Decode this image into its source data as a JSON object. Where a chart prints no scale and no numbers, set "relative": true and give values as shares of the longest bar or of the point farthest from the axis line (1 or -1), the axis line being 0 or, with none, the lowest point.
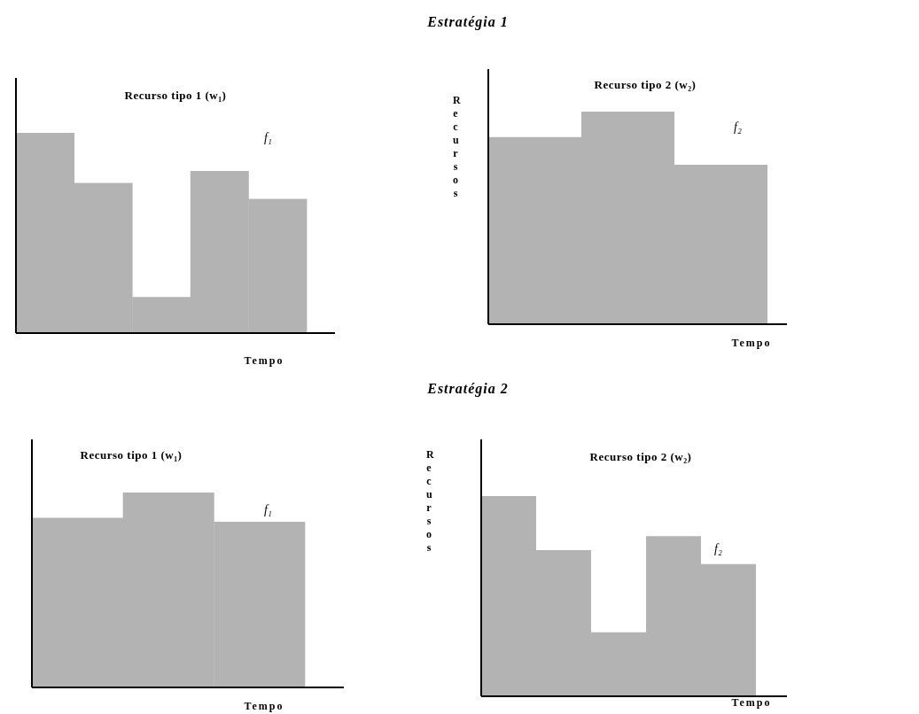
{
  "chart_data": [
    {
      "type": "bar",
      "title": "Recurso tipo 1 (w₁)",
      "xlabel": "Tempo",
      "annotations": [
        "Estratégia 1",
        "f₁"
      ],
      "categories": [
        null,
        null,
        null,
        null,
        null
      ],
      "values": [
        1,
        0.75,
        0.18,
        0.81,
        0.67
      ],
      "color": "#b3b3b3",
      "relative": true
    },
    {
      "type": "bar",
      "title": "Recurso tipo 2 (w₂)",
      "xlabel": "Tempo",
      "ylabel": "Recursos",
      "annotations": [
        "f₂"
      ],
      "categories": [
        null,
        null,
        null
      ],
      "values": [
        0.88,
        1,
        0.75
      ],
      "color": "#b3b3b3",
      "relative": true
    },
    {
      "type": "bar",
      "title": "Recurso tipo 1 (w₁)",
      "xlabel": "Tempo",
      "annotations": [
        "Estratégia 2",
        "f₁"
      ],
      "categories": [
        null,
        null,
        null
      ],
      "values": [
        0.87,
        1,
        0.85
      ],
      "color": "#b3b3b3",
      "relative": true
    },
    {
      "type": "bar",
      "title": "Recurso tipo 2 (w₂)",
      "xlabel": "Tempo",
      "ylabel": "Recursos",
      "annotations": [
        "f₂"
      ],
      "categories": [
        null,
        null,
        null,
        null,
        null
      ],
      "values": [
        1,
        0.73,
        0.32,
        0.8,
        0.66
      ],
      "color": "#b3b3b3",
      "relative": true
    }
  ]
}
